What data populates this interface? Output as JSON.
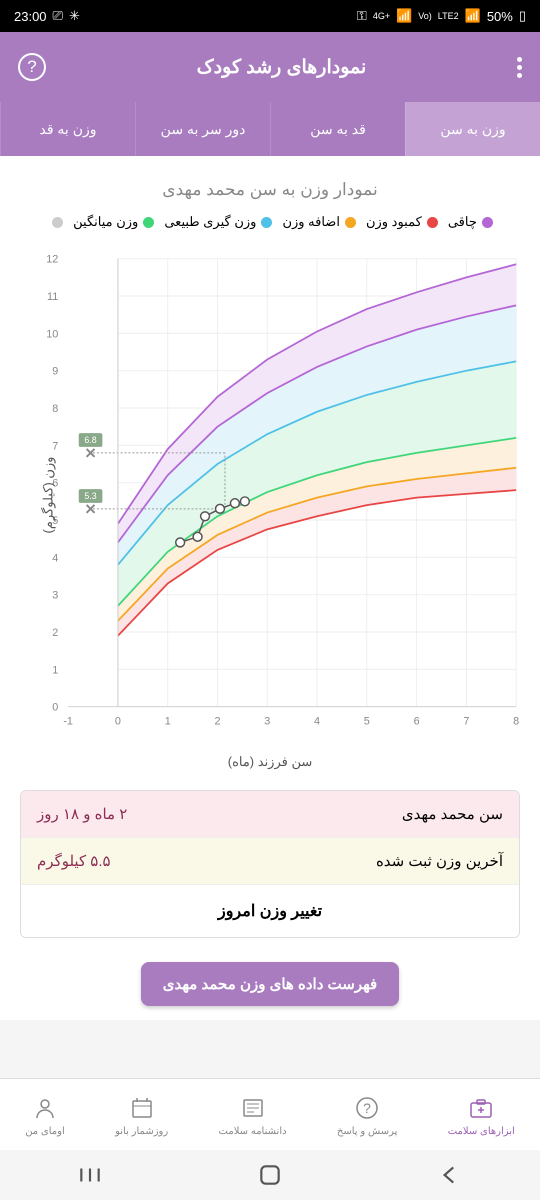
{
  "status": {
    "time": "23:00",
    "battery": "50%",
    "net1": "4G+",
    "net2": "Vo)",
    "net3": "LTE2"
  },
  "header": {
    "title": "نمودارهای رشد کودک"
  },
  "tabs": [
    {
      "label": "وزن به سن",
      "active": true
    },
    {
      "label": "قد به سن",
      "active": false
    },
    {
      "label": "دور سر به سن",
      "active": false
    },
    {
      "label": "وزن به قد",
      "active": false
    }
  ],
  "chart": {
    "title": "نمودار وزن به سن محمد مهدی",
    "y_label": "وزن (کیلوگرم)",
    "x_label": "سن فرزند (ماه)",
    "legend": [
      {
        "label": "چاقی",
        "color": "#b565d6"
      },
      {
        "label": "کمبود وزن",
        "color": "#e84545"
      },
      {
        "label": "اضافه وزن",
        "color": "#f5a623"
      },
      {
        "label": "وزن گیری طبیعی",
        "color": "#4fc0e8"
      },
      {
        "label": "وزن میانگین",
        "color": "#3fd67a"
      },
      {
        "label": "",
        "color": "#cccccc"
      }
    ],
    "y_ticks": [
      0,
      1,
      2,
      3,
      4,
      5,
      6,
      7,
      8,
      9,
      10,
      11,
      12
    ],
    "x_ticks": [
      -1,
      0,
      1,
      2,
      3,
      4,
      5,
      6,
      7,
      8
    ],
    "xlim": [
      -1,
      8
    ],
    "ylim": [
      0,
      12
    ],
    "bands": [
      {
        "color": "#e84545",
        "fill": "#fce4e4",
        "y_start": [
          1.9,
          3.3,
          4.2,
          4.75,
          5.1,
          5.4,
          5.6,
          5.7,
          5.8
        ]
      },
      {
        "color": "#f5a623",
        "fill": "#fdf0dc",
        "y_start": [
          2.3,
          3.7,
          4.6,
          5.2,
          5.6,
          5.9,
          6.1,
          6.25,
          6.4
        ]
      },
      {
        "color": "#3fd67a",
        "fill": "#e2f8ea",
        "y_start": [
          2.7,
          4.15,
          5.1,
          5.75,
          6.2,
          6.55,
          6.8,
          7.0,
          7.2
        ]
      },
      {
        "color": "#4fc0e8",
        "fill": "#e3f4fb",
        "y_start": [
          3.8,
          5.4,
          6.5,
          7.3,
          7.9,
          8.35,
          8.7,
          9.0,
          9.25
        ]
      },
      {
        "color": "#b565d6",
        "fill": "#f2e6f8",
        "y_start": [
          4.4,
          6.2,
          7.5,
          8.4,
          9.1,
          9.65,
          10.1,
          10.45,
          10.75
        ]
      },
      {
        "color": "#b565d6",
        "fill": "none",
        "y_start": [
          4.9,
          6.9,
          8.3,
          9.3,
          10.05,
          10.65,
          11.1,
          11.5,
          11.85
        ]
      }
    ],
    "data_points": [
      {
        "x": 1.25,
        "y": 4.4
      },
      {
        "x": 1.6,
        "y": 4.55
      },
      {
        "x": 1.75,
        "y": 5.1
      },
      {
        "x": 2.05,
        "y": 5.3
      },
      {
        "x": 2.35,
        "y": 5.45
      },
      {
        "x": 2.55,
        "y": 5.5
      }
    ],
    "markers": [
      {
        "x": -0.55,
        "y": 6.8,
        "label": "6.8",
        "bg": "#8aa88a"
      },
      {
        "x": -0.55,
        "y": 5.3,
        "label": "5.3",
        "bg": "#8aa88a"
      }
    ],
    "guide_v_x": 2.15,
    "guide_h_y": [
      5.3,
      6.8
    ]
  },
  "info": {
    "age_label": "سن محمد مهدی",
    "age_value": "۲ ماه و ۱۸ روز",
    "weight_label": "آخرین وزن ثبت شده",
    "weight_value": "۵.۵ کیلوگرم",
    "action": "تغییر وزن امروز"
  },
  "data_button": "فهرست داده های وزن محمد مهدی",
  "nav": [
    {
      "label": "ابزارهای سلامت",
      "active": true,
      "icon": "kit"
    },
    {
      "label": "پرسش و پاسخ",
      "active": false,
      "icon": "qa"
    },
    {
      "label": "دانشنامه سلامت",
      "active": false,
      "icon": "news"
    },
    {
      "label": "روزشمار بانو",
      "active": false,
      "icon": "cal"
    },
    {
      "label": "اومای من",
      "active": false,
      "icon": "user"
    }
  ]
}
